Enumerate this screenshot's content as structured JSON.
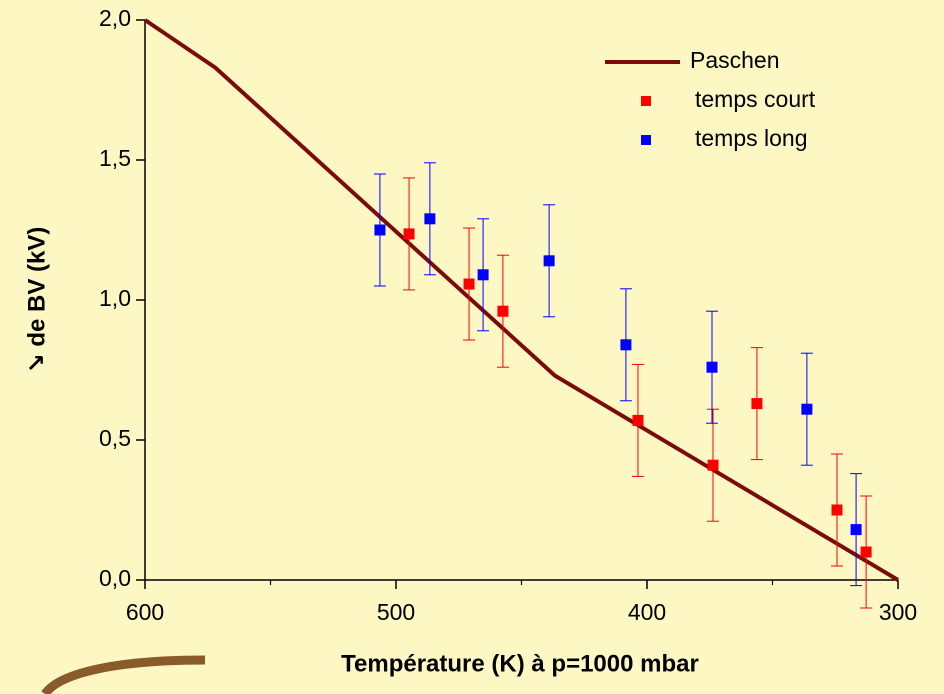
{
  "chart_data": {
    "type": "line",
    "xlabel": "Température (K) à p=1000 mbar",
    "ylabel": "↘ de BV (kV)",
    "xlim": [
      600,
      300
    ],
    "xticks": [
      600,
      500,
      400,
      300
    ],
    "xminorticks": [
      550,
      450,
      350
    ],
    "ylim": [
      0,
      2
    ],
    "yticks": [
      {
        "value": 0,
        "label": "0,0"
      },
      {
        "value": 0.5,
        "label": "0,5"
      },
      {
        "value": 1,
        "label": "1,0"
      },
      {
        "value": 1.5,
        "label": "1,5"
      },
      {
        "value": 2,
        "label": "2,0"
      }
    ],
    "legend": "upper right",
    "series": [
      {
        "name": "Paschen",
        "type": "line",
        "color": "#7b0a0a",
        "x": [
          600,
          572,
          436.7,
          300
        ],
        "values": [
          2.0,
          1.83,
          0.73,
          0.0
        ]
      },
      {
        "name": "temps court",
        "type": "scatter",
        "color": "#ff0000",
        "x": [
          494.8,
          470.9,
          457.4,
          403.6,
          373.7,
          356.2,
          324.3,
          312.7
        ],
        "values": [
          1.236,
          1.057,
          0.96,
          0.57,
          0.41,
          0.63,
          0.25,
          0.1
        ],
        "errors": [
          0.2,
          0.2,
          0.2,
          0.2,
          0.2,
          0.2,
          0.2,
          0.2
        ]
      },
      {
        "name": "temps long",
        "type": "scatter",
        "color": "#0000ff",
        "x": [
          506.4,
          486.5,
          465.3,
          439.0,
          408.4,
          374.1,
          336.3,
          316.7
        ],
        "values": [
          1.25,
          1.29,
          1.09,
          1.14,
          0.84,
          0.76,
          0.61,
          0.18
        ],
        "errors": [
          0.2,
          0.2,
          0.2,
          0.2,
          0.2,
          0.2,
          0.2,
          0.2
        ]
      }
    ]
  }
}
